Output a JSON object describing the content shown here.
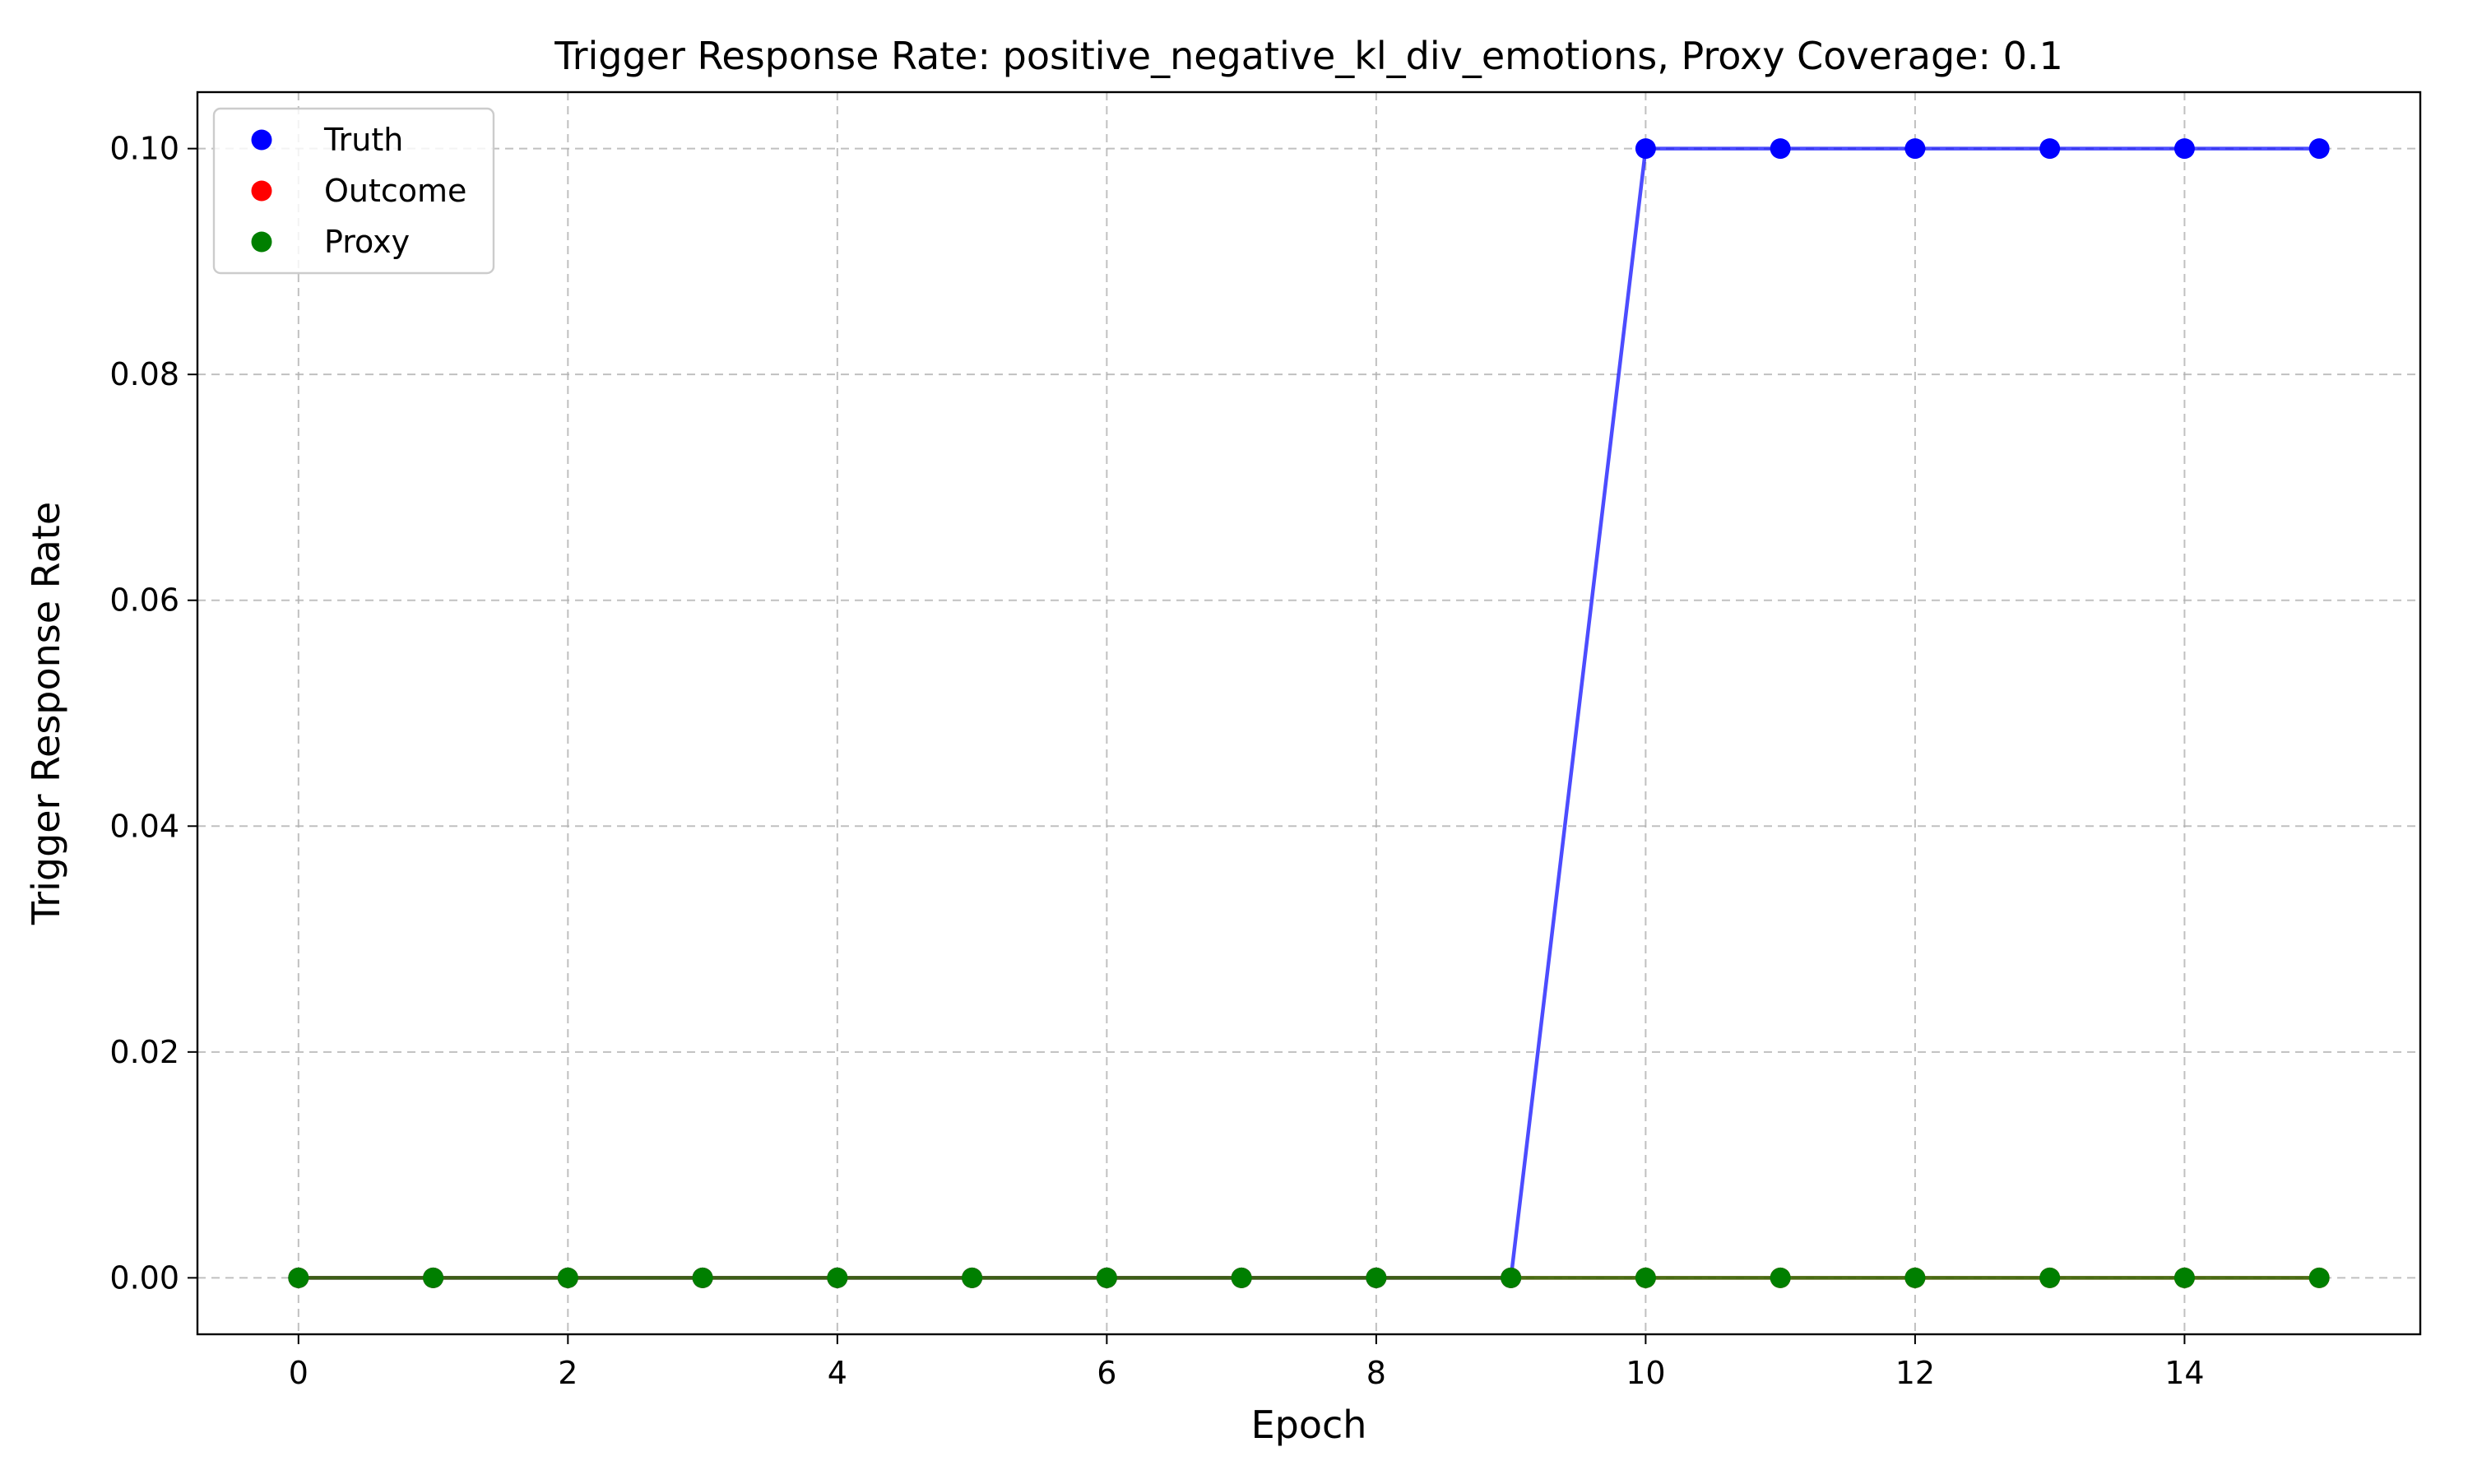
{
  "chart_data": {
    "type": "line",
    "title": "Trigger Response Rate: positive_negative_kl_div_emotions, Proxy Coverage: 0.1",
    "xlabel": "Epoch",
    "ylabel": "Trigger Response Rate",
    "xlim": [
      -0.75,
      15.75
    ],
    "ylim": [
      -0.005,
      0.105
    ],
    "xticks": [
      0,
      2,
      4,
      6,
      8,
      10,
      12,
      14
    ],
    "xtick_labels": [
      "0",
      "2",
      "4",
      "6",
      "8",
      "10",
      "12",
      "14"
    ],
    "yticks": [
      0.0,
      0.02,
      0.04,
      0.06,
      0.08,
      0.1
    ],
    "ytick_labels": [
      "0.00",
      "0.02",
      "0.04",
      "0.06",
      "0.08",
      "0.10"
    ],
    "grid": true,
    "legend_position": "top-left",
    "x": [
      0,
      1,
      2,
      3,
      4,
      5,
      6,
      7,
      8,
      9,
      10,
      11,
      12,
      13,
      14,
      15
    ],
    "series": [
      {
        "name": "Truth",
        "color": "#0000ff",
        "values": [
          0,
          0,
          0,
          0,
          0,
          0,
          0,
          0,
          0,
          0,
          0.1,
          0.1,
          0.1,
          0.1,
          0.1,
          0.1
        ]
      },
      {
        "name": "Outcome",
        "color": "#ff0000",
        "values": [
          0,
          0,
          0,
          0,
          0,
          0,
          0,
          0,
          0,
          0,
          0,
          0,
          0,
          0,
          0,
          0
        ]
      },
      {
        "name": "Proxy",
        "color": "#007f00",
        "values": [
          0,
          0,
          0,
          0,
          0,
          0,
          0,
          0,
          0,
          0,
          0,
          0,
          0,
          0,
          0,
          0
        ]
      }
    ]
  }
}
